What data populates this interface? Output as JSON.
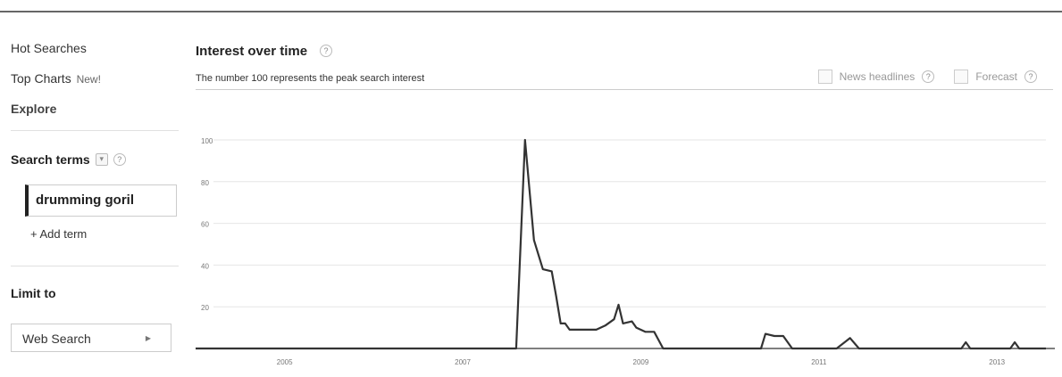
{
  "nav": {
    "hot_searches": "Hot Searches",
    "top_charts": "Top Charts",
    "top_charts_badge": "New!",
    "explore": "Explore"
  },
  "search": {
    "title": "Search terms",
    "term": "drumming goril",
    "add_term": "+ Add term"
  },
  "limit": {
    "title": "Limit to",
    "dropdown_value": "Web Search"
  },
  "main": {
    "title": "Interest over time",
    "subtitle": "The number 100 represents the peak search interest",
    "news_headlines": "News headlines",
    "forecast": "Forecast",
    "help_glyph": "?"
  },
  "chart_data": {
    "type": "line",
    "title": "",
    "xlabel": "",
    "ylabel": "",
    "ylim": [
      0,
      100
    ],
    "xlim": [
      2004,
      2013.55
    ],
    "yticks": [
      20,
      40,
      60,
      80,
      100
    ],
    "xticks": [
      2005,
      2007,
      2009,
      2011,
      2013
    ],
    "grid": true,
    "series": [
      {
        "values_x": [
          2004.0,
          2007.6,
          2007.7,
          2007.8,
          2007.9,
          2008.0,
          2008.05,
          2008.1,
          2008.15,
          2008.2,
          2008.35,
          2008.5,
          2008.6,
          2008.7,
          2008.75,
          2008.8,
          2008.9,
          2008.95,
          2009.05,
          2009.15,
          2009.25,
          2009.3,
          2010.35,
          2010.4,
          2010.5,
          2010.6,
          2010.7,
          2011.2,
          2011.35,
          2011.45,
          2012.6,
          2012.65,
          2012.7,
          2012.75,
          2013.15,
          2013.2,
          2013.25,
          2013.3,
          2013.55
        ],
        "values_y": [
          0,
          0,
          100,
          52,
          38,
          37,
          25,
          12,
          12,
          9,
          9,
          9,
          11,
          14,
          21,
          12,
          13,
          10,
          8,
          8,
          0,
          0,
          0,
          7,
          6,
          6,
          0,
          0,
          5,
          0,
          0,
          3,
          0,
          0,
          0,
          3,
          0,
          0,
          0
        ]
      }
    ]
  },
  "colors": {
    "line": "#333333",
    "grid": "#e6e6e6",
    "baseline": "#555555"
  }
}
